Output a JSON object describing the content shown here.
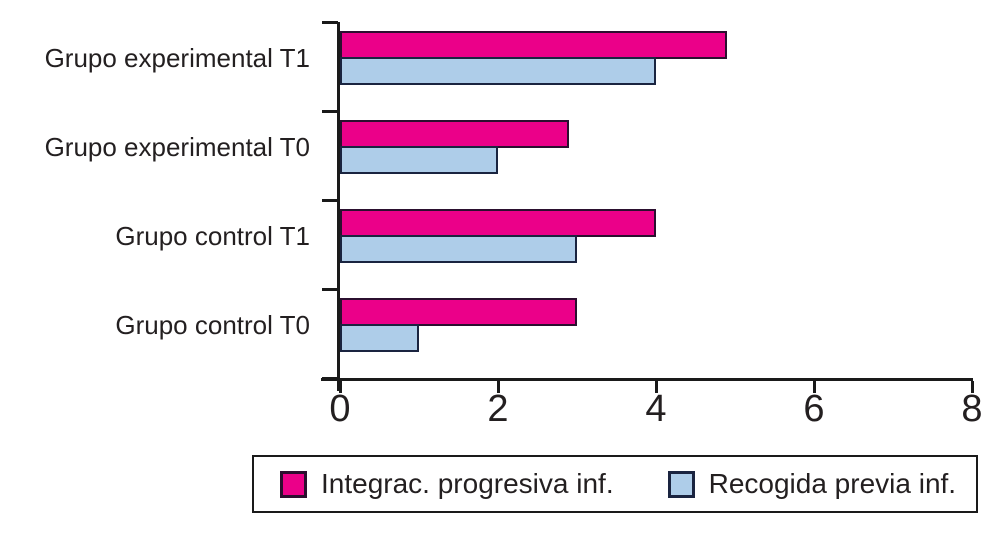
{
  "chart_data": {
    "type": "bar",
    "orientation": "horizontal",
    "title": "",
    "xlabel": "",
    "ylabel": "",
    "categories": [
      "Grupo experimental T1",
      "Grupo experimental T0",
      "Grupo control T1",
      "Grupo control T0"
    ],
    "series": [
      {
        "name": "Integrac. progresiva inf.",
        "color": "#EB0089",
        "border_color": "#2B0F2F",
        "values": [
          4.9,
          2.9,
          4.0,
          3.0
        ]
      },
      {
        "name": "Recogida previa inf.",
        "color": "#AECDE9",
        "border_color": "#1A2440",
        "values": [
          4.0,
          2.0,
          3.0,
          1.0
        ]
      }
    ],
    "x_ticks": [
      "0",
      "2",
      "4",
      "6",
      "8"
    ],
    "xlim": [
      0,
      8
    ],
    "grid": false,
    "legend_position": "bottom",
    "axis_color": "#1A1A1A",
    "text_color": "#231F20",
    "background_color": "#FFFFFF"
  }
}
